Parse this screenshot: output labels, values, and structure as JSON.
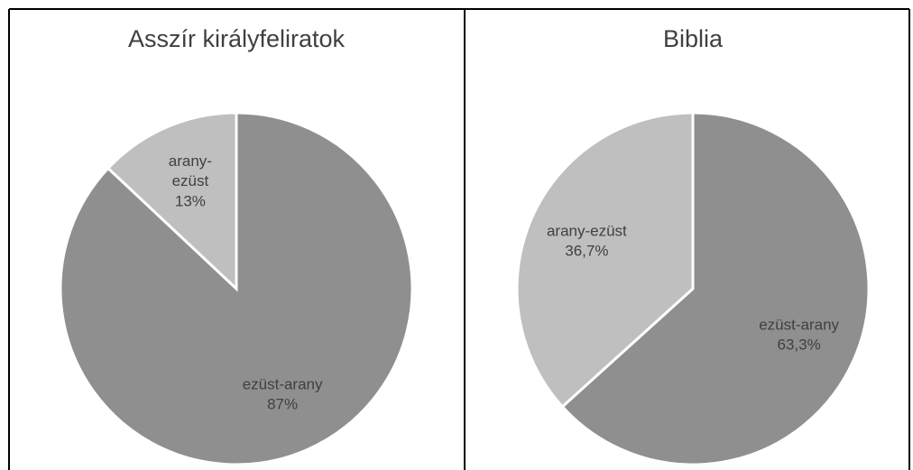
{
  "chart_data": [
    {
      "type": "pie",
      "title": "Asszír királyfeliratok",
      "categories": [
        "ezüst-arany",
        "arany-ezüst"
      ],
      "values": [
        87,
        13
      ],
      "value_labels": [
        "87%",
        "13%"
      ],
      "colors": [
        "#8f8f8f",
        "#bfbfbf"
      ]
    },
    {
      "type": "pie",
      "title": "Biblia",
      "categories": [
        "ezüst-arany",
        "arany-ezüst"
      ],
      "values": [
        63.3,
        36.7
      ],
      "value_labels": [
        "63,3%",
        "36,7%"
      ],
      "colors": [
        "#8f8f8f",
        "#bfbfbf"
      ]
    }
  ]
}
